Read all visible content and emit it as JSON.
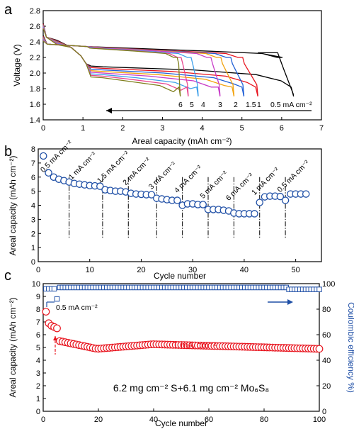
{
  "chart_data": [
    {
      "type": "line",
      "panel": "a",
      "xlabel": "Areal capacity (mAh cm⁻²)",
      "ylabel": "Voltage (V)",
      "xlim": [
        0,
        7
      ],
      "ylim": [
        1.4,
        2.8
      ],
      "xticks": [
        "0",
        "1",
        "2",
        "3",
        "4",
        "5",
        "6",
        "7"
      ],
      "yticks": [
        "1.4",
        "1.6",
        "1.8",
        "2.0",
        "2.2",
        "2.4",
        "2.6",
        "2.8"
      ],
      "rate_labels": [
        "6",
        "5",
        "4",
        "3",
        "2",
        "1.5",
        "1",
        "0.5 mA cm⁻²"
      ],
      "series": [
        {
          "name": "0.5 mA cm⁻²",
          "color": "#000000",
          "discharge_end": 6.3,
          "charge_end": 6.0,
          "vmin": 1.7,
          "plateau": 2.08
        },
        {
          "name": "1",
          "color": "#e8141e",
          "discharge_end": 5.4,
          "charge_end": 5.0,
          "vmin": 1.7,
          "plateau": 2.06
        },
        {
          "name": "1.5",
          "color": "#1f5fd6",
          "discharge_end": 5.05,
          "charge_end": 4.7,
          "vmin": 1.7,
          "plateau": 2.04
        },
        {
          "name": "2",
          "color": "#f2a20c",
          "discharge_end": 4.8,
          "charge_end": 4.45,
          "vmin": 1.7,
          "plateau": 2.02
        },
        {
          "name": "3",
          "color": "#c83cc8",
          "discharge_end": 4.45,
          "charge_end": 4.2,
          "vmin": 1.7,
          "plateau": 2.0
        },
        {
          "name": "4",
          "color": "#3fa0ea",
          "discharge_end": 3.9,
          "charge_end": 3.7,
          "vmin": 1.7,
          "plateau": 1.98
        },
        {
          "name": "5",
          "color": "#e84890",
          "discharge_end": 3.65,
          "charge_end": 3.45,
          "vmin": 1.7,
          "plateau": 1.96
        },
        {
          "name": "6",
          "color": "#7f7f1c",
          "discharge_end": 3.45,
          "charge_end": 3.35,
          "vmin": 1.7,
          "plateau": 1.94
        }
      ]
    },
    {
      "type": "scatter",
      "panel": "b",
      "xlabel": "Cycle number",
      "ylabel": "Areal capacity (mAh cm⁻²)",
      "xlim": [
        0,
        55
      ],
      "ylim": [
        0,
        8
      ],
      "xticks": [
        "0",
        "10",
        "20",
        "30",
        "40",
        "50"
      ],
      "yticks": [
        "0",
        "1",
        "2",
        "3",
        "4",
        "5",
        "6",
        "7",
        "8"
      ],
      "marker_color": "#1f4fa6",
      "x": [
        1,
        2,
        3,
        4,
        5,
        6,
        7,
        8,
        9,
        10,
        11,
        12,
        13,
        14,
        15,
        16,
        17,
        18,
        19,
        20,
        21,
        22,
        23,
        24,
        25,
        26,
        27,
        28,
        29,
        30,
        31,
        32,
        33,
        34,
        35,
        36,
        37,
        38,
        39,
        40,
        41,
        42,
        43,
        44,
        45,
        46,
        47,
        48,
        49,
        50,
        51,
        52
      ],
      "values": [
        7.5,
        6.3,
        6.0,
        5.85,
        5.75,
        5.65,
        5.55,
        5.5,
        5.45,
        5.4,
        5.38,
        5.35,
        5.1,
        5.05,
        5.0,
        5.0,
        4.95,
        4.85,
        4.8,
        4.78,
        4.75,
        4.75,
        4.5,
        4.45,
        4.4,
        4.35,
        4.35,
        4.0,
        4.1,
        4.1,
        4.05,
        4.05,
        3.7,
        3.7,
        3.7,
        3.65,
        3.6,
        3.45,
        3.4,
        3.4,
        3.4,
        3.4,
        4.2,
        4.6,
        4.65,
        4.65,
        4.62,
        4.35,
        4.8,
        4.8,
        4.8,
        4.8
      ],
      "dividers": [
        6,
        12.5,
        17.5,
        23,
        28,
        33,
        38,
        43,
        48
      ],
      "rate_labels": [
        "0.5 mA cm⁻²",
        "1 mA cm⁻²",
        "1.5 mA cm⁻²",
        "2 mA cm⁻²",
        "3 mA cm⁻²",
        "4 mA cm⁻²",
        "5 mA cm⁻²",
        "6 mA cm⁻²",
        "1 mA cm⁻²",
        "0.5 mA cm⁻²"
      ]
    },
    {
      "type": "scatter",
      "panel": "c",
      "xlabel": "Cycle number",
      "ylabel": "Areal capacity (mAh cm⁻²)",
      "ylabel_right": "Coulombic efficiency  %)",
      "xlim": [
        0,
        100
      ],
      "ylim": [
        0,
        10
      ],
      "ylim_right": [
        0,
        100
      ],
      "xticks": [
        "0",
        "20",
        "40",
        "60",
        "80",
        "100"
      ],
      "yticks": [
        "0",
        "1",
        "2",
        "3",
        "4",
        "5",
        "6",
        "7",
        "8",
        "9",
        "10"
      ],
      "yticks_right": [
        "0",
        "20",
        "40",
        "60",
        "80",
        "100"
      ],
      "capacity_color": "#e8141e",
      "efficiency_color": "#1f4fa6",
      "annotation_05": "0.5 mA cm⁻²",
      "annotation_1": "1 mA cm⁻²",
      "loading_label": "6.2 mg cm⁻² S+6.1 mg cm⁻² Mo₆S₈",
      "capacity_first": [
        7.8,
        6.9,
        6.7,
        6.6,
        6.5
      ],
      "capacity_plateau": 4.9,
      "efficiency_typical": 97,
      "efficiency_dip": {
        "x": 5,
        "value": 88
      }
    }
  ]
}
